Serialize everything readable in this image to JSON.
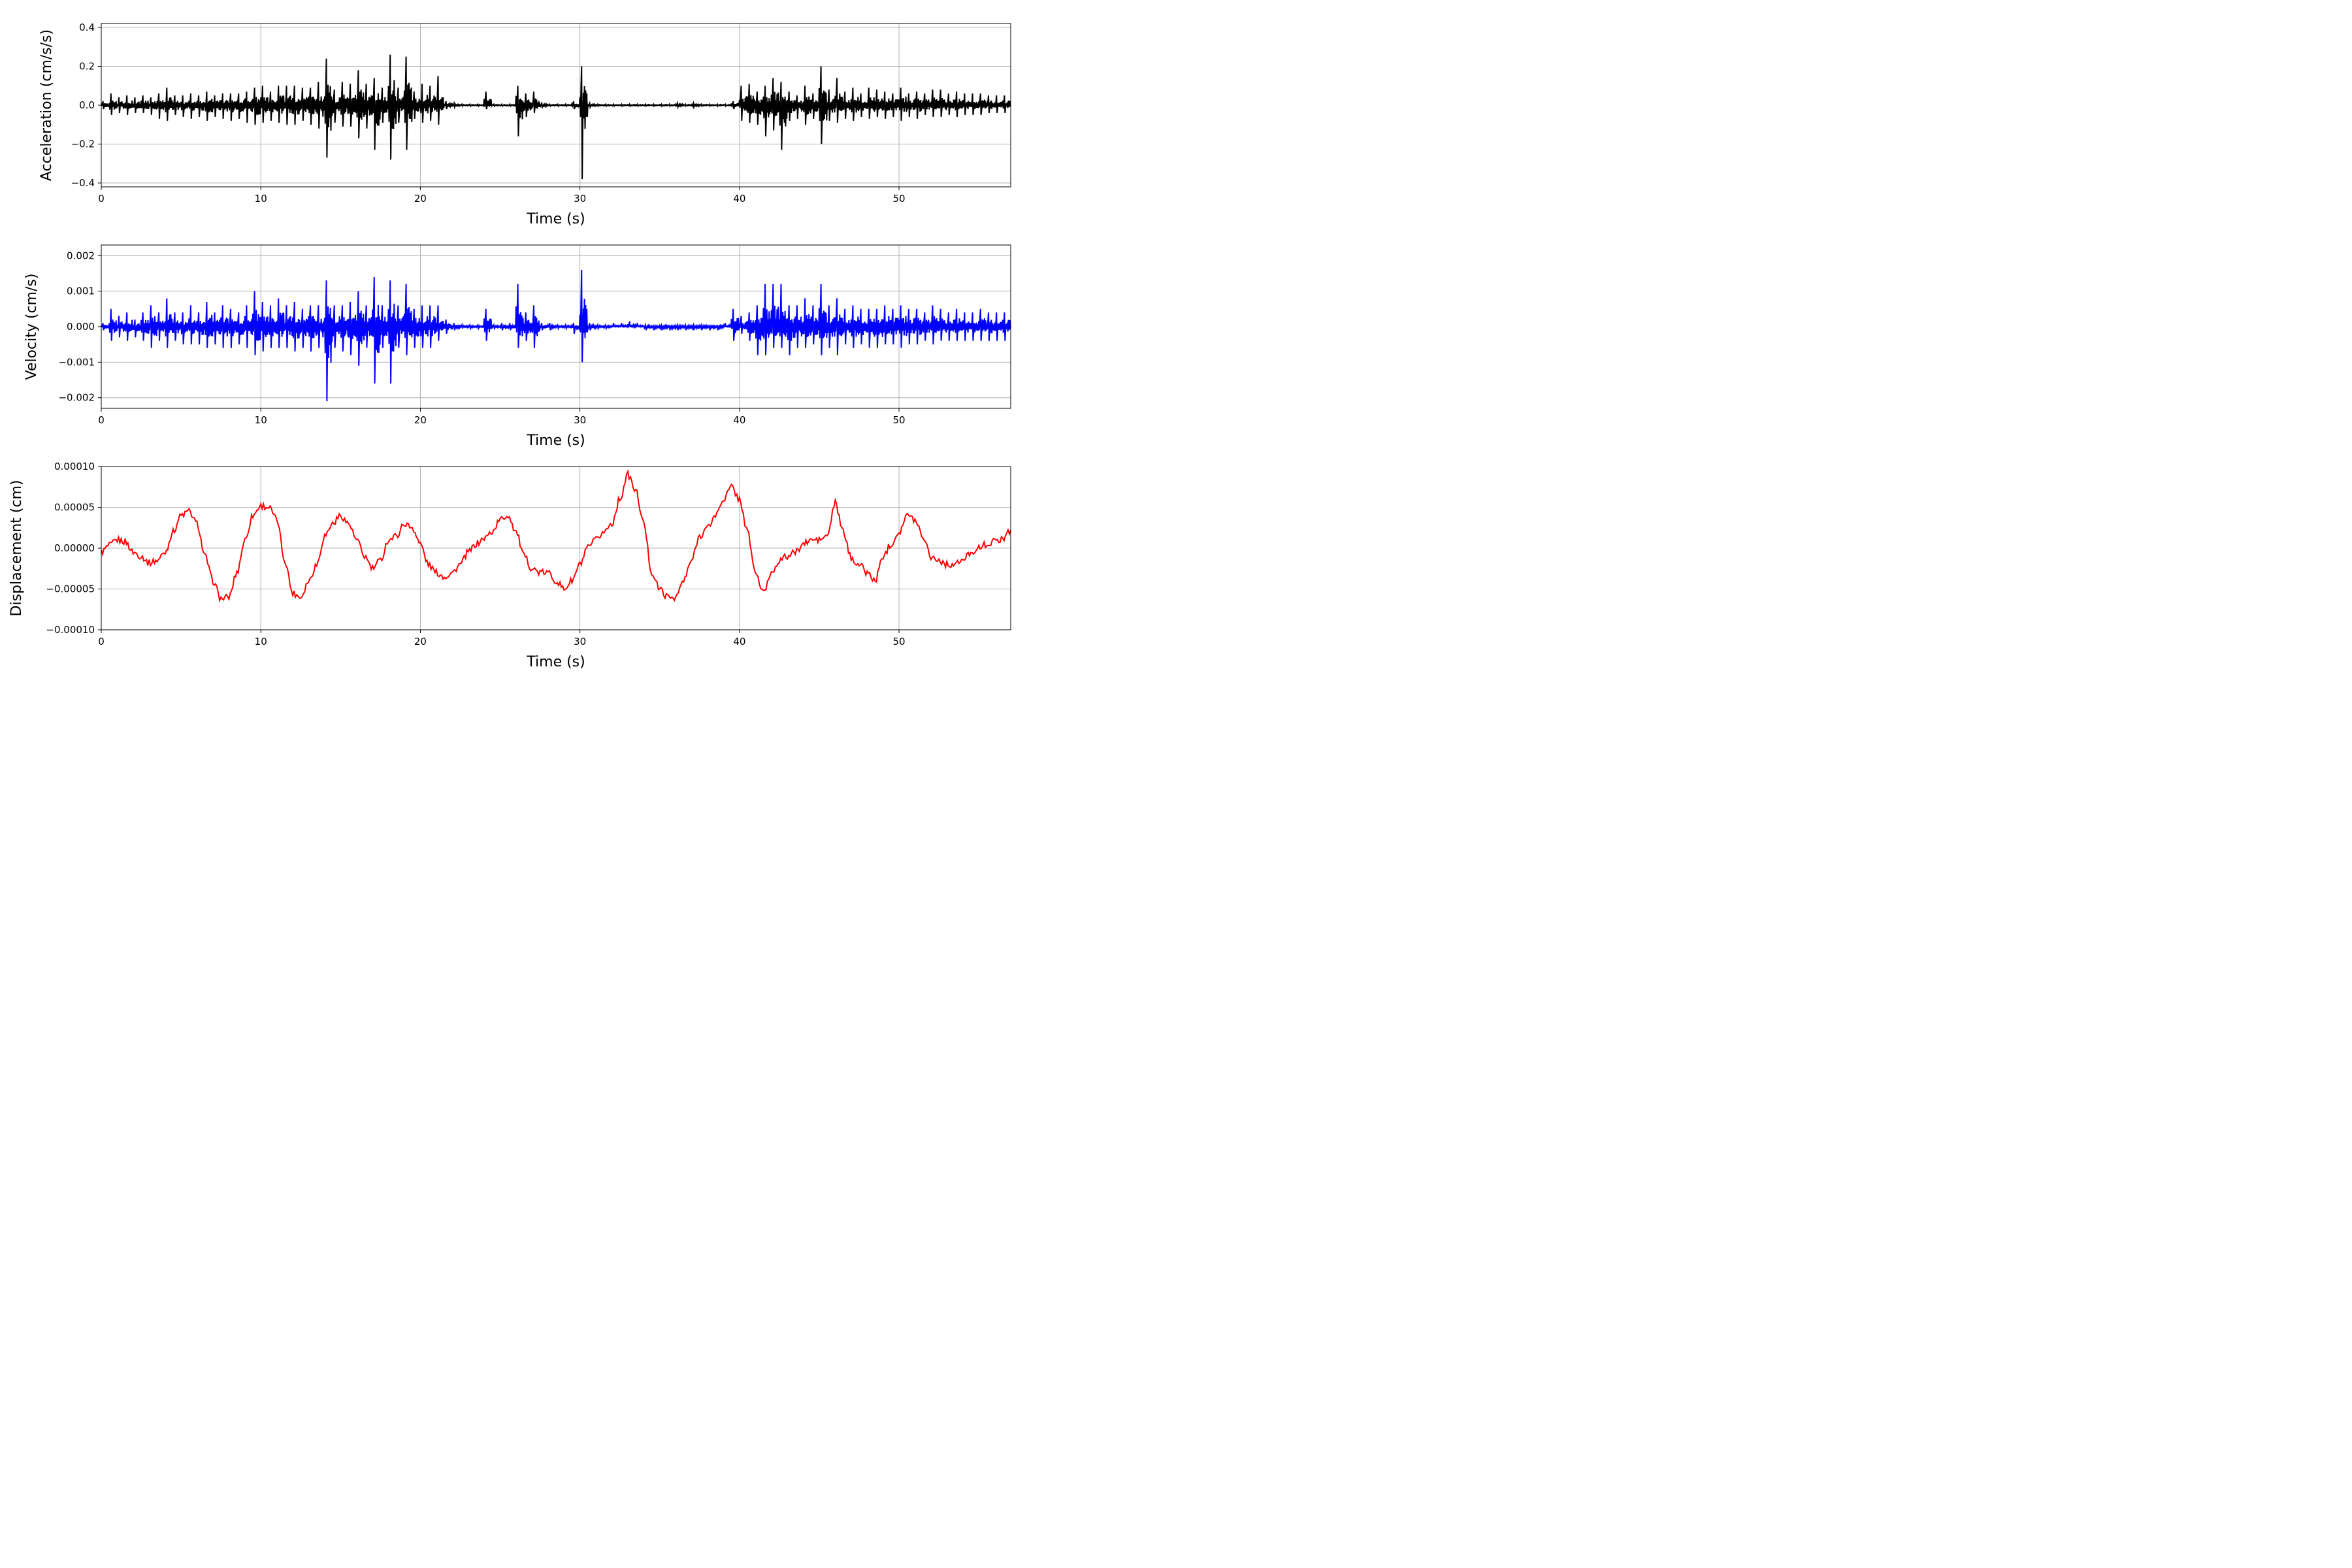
{
  "chart_data": [
    {
      "type": "line",
      "xlabel": "Time (s)",
      "ylabel": "Acceleration (cm/s/s)",
      "xlim": [
        0,
        57
      ],
      "ylim": [
        -0.42,
        0.42
      ],
      "xticks": [
        "0",
        "10",
        "20",
        "30",
        "40",
        "50"
      ],
      "yticks": [
        "−0.4",
        "−0.2",
        "0.0",
        "0.2",
        "0.4"
      ],
      "grid": true,
      "color": "#000000",
      "series_x": [
        0,
        0.5,
        1,
        1.5,
        2,
        2.5,
        3,
        3.5,
        4,
        4.5,
        5,
        5.5,
        6,
        6.5,
        7,
        7.5,
        8,
        8.5,
        9,
        9.5,
        10,
        10.5,
        11,
        11.5,
        12,
        12.5,
        13,
        13.5,
        14,
        14.5,
        15,
        15.5,
        16,
        16.5,
        17,
        17.5,
        18,
        18.5,
        19,
        19.5,
        20,
        20.5,
        21,
        21.5,
        22,
        22.5,
        23,
        23.5,
        24,
        24.5,
        25,
        25.5,
        26,
        26.5,
        27,
        27.5,
        28,
        28.5,
        29,
        29.5,
        30,
        30.5,
        31,
        31.5,
        32,
        32.5,
        33,
        33.5,
        34,
        34.5,
        35,
        35.5,
        36,
        36.5,
        37,
        37.5,
        38,
        38.5,
        39,
        39.5,
        40,
        40.5,
        41,
        41.5,
        42,
        42.5,
        43,
        43.5,
        44,
        44.5,
        45,
        45.5,
        46,
        46.5,
        47,
        47.5,
        48,
        48.5,
        49,
        49.5,
        50,
        50.5,
        51,
        51.5,
        52,
        52.5,
        53,
        53.5,
        54,
        54.5,
        55,
        55.5,
        56,
        56.5,
        57
      ],
      "series_max": [
        0.02,
        0.06,
        0.04,
        0.05,
        0.04,
        0.05,
        0.04,
        0.06,
        0.09,
        0.05,
        0.05,
        0.06,
        0.05,
        0.07,
        0.05,
        0.06,
        0.06,
        0.06,
        0.07,
        0.09,
        0.1,
        0.07,
        0.1,
        0.1,
        0.1,
        0.09,
        0.09,
        0.12,
        0.24,
        0.08,
        0.12,
        0.11,
        0.18,
        0.11,
        0.14,
        0.09,
        0.26,
        0.09,
        0.25,
        0.07,
        0.11,
        0.1,
        0.15,
        0.02,
        0.01,
        0.005,
        0.005,
        0.005,
        0.07,
        0.005,
        0.005,
        0.005,
        0.1,
        0.06,
        0.07,
        0.01,
        0.005,
        0.005,
        0.005,
        0.02,
        0.2,
        0.01,
        0.005,
        0.005,
        0.005,
        0.005,
        0.005,
        0.005,
        0.005,
        0.005,
        0.005,
        0.005,
        0.01,
        0.005,
        0.01,
        0.005,
        0.005,
        0.005,
        0.005,
        0.02,
        0.1,
        0.11,
        0.07,
        0.1,
        0.14,
        0.12,
        0.07,
        0.05,
        0.1,
        0.06,
        0.2,
        0.08,
        0.14,
        0.07,
        0.09,
        0.06,
        0.09,
        0.08,
        0.07,
        0.06,
        0.09,
        0.06,
        0.07,
        0.06,
        0.08,
        0.08,
        0.06,
        0.07,
        0.06,
        0.06,
        0.06,
        0.05,
        0.05,
        0.05,
        0.04
      ],
      "series_min": [
        -0.02,
        -0.05,
        -0.04,
        -0.05,
        -0.04,
        -0.04,
        -0.05,
        -0.07,
        -0.08,
        -0.05,
        -0.06,
        -0.07,
        -0.06,
        -0.08,
        -0.06,
        -0.07,
        -0.08,
        -0.07,
        -0.09,
        -0.1,
        -0.09,
        -0.08,
        -0.09,
        -0.1,
        -0.1,
        -0.08,
        -0.1,
        -0.12,
        -0.27,
        -0.09,
        -0.11,
        -0.11,
        -0.17,
        -0.12,
        -0.23,
        -0.09,
        -0.28,
        -0.09,
        -0.23,
        -0.07,
        -0.09,
        -0.08,
        -0.1,
        -0.02,
        -0.01,
        -0.005,
        -0.005,
        -0.005,
        -0.02,
        -0.005,
        -0.005,
        -0.005,
        -0.16,
        -0.06,
        -0.04,
        -0.01,
        -0.005,
        -0.005,
        -0.005,
        -0.02,
        -0.38,
        -0.01,
        -0.005,
        -0.005,
        -0.005,
        -0.005,
        -0.005,
        -0.005,
        -0.005,
        -0.005,
        -0.005,
        -0.005,
        -0.01,
        -0.005,
        -0.01,
        -0.005,
        -0.005,
        -0.005,
        -0.005,
        -0.02,
        -0.08,
        -0.09,
        -0.1,
        -0.16,
        -0.13,
        -0.23,
        -0.08,
        -0.07,
        -0.1,
        -0.07,
        -0.2,
        -0.08,
        -0.09,
        -0.07,
        -0.08,
        -0.06,
        -0.07,
        -0.06,
        -0.07,
        -0.06,
        -0.08,
        -0.06,
        -0.07,
        -0.05,
        -0.06,
        -0.06,
        -0.05,
        -0.06,
        -0.05,
        -0.05,
        -0.05,
        -0.04,
        -0.04,
        -0.04,
        -0.03
      ]
    },
    {
      "type": "line",
      "xlabel": "Time (s)",
      "ylabel": "Velocity (cm/s)",
      "xlim": [
        0,
        57
      ],
      "ylim": [
        -0.0023,
        0.0023
      ],
      "xticks": [
        "0",
        "10",
        "20",
        "30",
        "40",
        "50"
      ],
      "yticks": [
        "−0.002",
        "−0.001",
        "0.000",
        "0.001",
        "0.002"
      ],
      "grid": true,
      "color": "#0000ff",
      "series_x": [
        0,
        0.5,
        1,
        1.5,
        2,
        2.5,
        3,
        3.5,
        4,
        4.5,
        5,
        5.5,
        6,
        6.5,
        7,
        7.5,
        8,
        8.5,
        9,
        9.5,
        10,
        10.5,
        11,
        11.5,
        12,
        12.5,
        13,
        13.5,
        14,
        14.5,
        15,
        15.5,
        16,
        16.5,
        17,
        17.5,
        18,
        18.5,
        19,
        19.5,
        20,
        20.5,
        21,
        21.5,
        22,
        22.5,
        23,
        23.5,
        24,
        24.5,
        25,
        25.5,
        26,
        26.5,
        27,
        27.5,
        28,
        28.5,
        29,
        29.5,
        30,
        30.5,
        31,
        31.5,
        32,
        32.5,
        33,
        33.5,
        34,
        34.5,
        35,
        35.5,
        36,
        36.5,
        37,
        37.5,
        38,
        38.5,
        39,
        39.5,
        40,
        40.5,
        41,
        41.5,
        42,
        42.5,
        43,
        43.5,
        44,
        44.5,
        45,
        45.5,
        46,
        46.5,
        47,
        47.5,
        48,
        48.5,
        49,
        49.5,
        50,
        50.5,
        51,
        51.5,
        52,
        52.5,
        53,
        53.5,
        54,
        54.5,
        55,
        55.5,
        56,
        56.5,
        57
      ],
      "series_max": [
        0.0001,
        0.0005,
        0.0003,
        0.0004,
        0.0002,
        0.0004,
        0.0006,
        0.0004,
        0.0008,
        0.0004,
        0.0004,
        0.0006,
        0.0004,
        0.0007,
        0.0004,
        0.0006,
        0.0005,
        0.0004,
        0.0006,
        0.001,
        0.0007,
        0.0006,
        0.0008,
        0.0006,
        0.0007,
        0.0005,
        0.0006,
        0.0006,
        0.0013,
        0.0006,
        0.0006,
        0.0007,
        0.001,
        0.0006,
        0.0014,
        0.0006,
        0.0013,
        0.0006,
        0.0012,
        0.0005,
        0.0006,
        0.0006,
        0.0006,
        0.0002,
        0.0001,
        5e-05,
        5e-05,
        5e-05,
        0.0005,
        5e-05,
        0.0001,
        0.0001,
        0.0012,
        0.0004,
        0.0006,
        0.0001,
        0.0001,
        5e-05,
        5e-05,
        0.0001,
        0.0016,
        0.0001,
        5e-05,
        5e-05,
        0.0001,
        0.0001,
        0.00015,
        0.0001,
        5e-05,
        5e-05,
        5e-05,
        5e-05,
        5e-05,
        5e-05,
        5e-05,
        5e-05,
        5e-05,
        5e-05,
        0.0001,
        0.0005,
        0.0003,
        0.0004,
        0.0006,
        0.0012,
        0.0012,
        0.0012,
        0.0006,
        0.0006,
        0.0008,
        0.0006,
        0.0012,
        0.0006,
        0.0008,
        0.0005,
        0.0006,
        0.0005,
        0.0005,
        0.0005,
        0.0006,
        0.0005,
        0.0006,
        0.0005,
        0.0005,
        0.0004,
        0.0006,
        0.0005,
        0.0004,
        0.0005,
        0.0004,
        0.0004,
        0.0005,
        0.0004,
        0.0004,
        0.0004,
        0.0003
      ],
      "series_min": [
        -0.0001,
        -0.0004,
        -0.0003,
        -0.0004,
        -0.0003,
        -0.0004,
        -0.0006,
        -0.0004,
        -0.0006,
        -0.0004,
        -0.0005,
        -0.0005,
        -0.0005,
        -0.0006,
        -0.0005,
        -0.0006,
        -0.0006,
        -0.0005,
        -0.0006,
        -0.0008,
        -0.0007,
        -0.0006,
        -0.0006,
        -0.0006,
        -0.0007,
        -0.0006,
        -0.0007,
        -0.0006,
        -0.0021,
        -0.0006,
        -0.0007,
        -0.0008,
        -0.0011,
        -0.0006,
        -0.0016,
        -0.0006,
        -0.0016,
        -0.0006,
        -0.0008,
        -0.0006,
        -0.0006,
        -0.0006,
        -0.0004,
        -0.0002,
        -0.0001,
        -5e-05,
        -5e-05,
        -5e-05,
        -0.0004,
        -5e-05,
        -0.0001,
        -0.0001,
        -0.0006,
        -0.0004,
        -0.0006,
        -0.0001,
        -0.0001,
        -5e-05,
        -5e-05,
        -0.0002,
        -0.001,
        -0.0001,
        -5e-05,
        -5e-05,
        0,
        0,
        0,
        0,
        -0.0001,
        -0.0001,
        -0.0001,
        -0.0001,
        -0.0001,
        -0.0001,
        -0.0001,
        -0.0001,
        -0.0001,
        -0.0001,
        0,
        -0.0004,
        -0.0002,
        -0.0004,
        -0.0008,
        -0.0008,
        -0.0006,
        -0.0006,
        -0.0008,
        -0.0006,
        -0.0006,
        -0.0005,
        -0.0008,
        -0.0006,
        -0.0008,
        -0.0005,
        -0.0006,
        -0.0005,
        -0.0006,
        -0.0006,
        -0.0005,
        -0.0005,
        -0.0006,
        -0.0005,
        -0.0005,
        -0.0004,
        -0.0005,
        -0.0004,
        -0.0004,
        -0.0004,
        -0.0004,
        -0.0004,
        -0.0004,
        -0.0004,
        -0.0004,
        -0.0004,
        -0.0003
      ]
    },
    {
      "type": "line",
      "xlabel": "Time (s)",
      "ylabel": "Displacement (cm)",
      "xlim": [
        0,
        57
      ],
      "ylim": [
        -0.0001,
        0.0001
      ],
      "xticks": [
        "0",
        "10",
        "20",
        "30",
        "40",
        "50"
      ],
      "yticks": [
        "−0.00010",
        "−0.00005",
        "0.00000",
        "0.00005",
        "0.00010"
      ],
      "grid": true,
      "color": "#ff0000",
      "series_x": [
        0,
        0.5,
        1,
        1.5,
        2,
        2.5,
        3,
        3.5,
        4,
        4.5,
        5,
        5.5,
        6,
        6.5,
        7,
        7.5,
        8,
        8.5,
        9,
        9.5,
        10,
        10.5,
        11,
        11.5,
        12,
        12.5,
        13,
        13.5,
        14,
        14.5,
        15,
        15.5,
        16,
        16.5,
        17,
        17.5,
        18,
        18.5,
        19,
        19.5,
        20,
        20.5,
        21,
        21.5,
        22,
        22.5,
        23,
        23.5,
        24,
        24.5,
        25,
        25.5,
        26,
        26.5,
        27,
        27.5,
        28,
        28.5,
        29,
        29.5,
        30,
        30.5,
        31,
        31.5,
        32,
        32.5,
        33,
        33.5,
        34,
        34.5,
        35,
        35.5,
        36,
        36.5,
        37,
        37.5,
        38,
        38.5,
        39,
        39.5,
        40,
        40.5,
        41,
        41.5,
        42,
        42.5,
        43,
        43.5,
        44,
        44.5,
        45,
        45.5,
        46,
        46.5,
        47,
        47.5,
        48,
        48.5,
        49,
        49.5,
        50,
        50.5,
        51,
        51.5,
        52,
        52.5,
        53,
        53.5,
        54,
        54.5,
        55,
        55.5,
        56,
        56.5,
        57
      ],
      "series_y": [
        -5e-06,
        3e-06,
        1e-05,
        8e-06,
        -5e-06,
        -1e-05,
        -1.8e-05,
        -1.5e-05,
        -5e-06,
        2e-05,
        4e-05,
        4.5e-05,
        3e-05,
        -1e-05,
        -4e-05,
        -6.2e-05,
        -6e-05,
        -3e-05,
        1e-05,
        4e-05,
        5.2e-05,
        5e-05,
        3.5e-05,
        -1.5e-05,
        -5.5e-05,
        -6e-05,
        -4e-05,
        -2e-05,
        1.5e-05,
        3e-05,
        4e-05,
        3e-05,
        1e-05,
        -1e-05,
        -2.5e-05,
        -1.5e-05,
        1e-05,
        1.5e-05,
        3e-05,
        2.5e-05,
        5e-06,
        -2e-05,
        -3e-05,
        -3.5e-05,
        -3e-05,
        -2e-05,
        -5e-06,
        5e-06,
        1.2e-05,
        2e-05,
        3.5e-05,
        4e-05,
        2e-05,
        -1e-05,
        -2.5e-05,
        -3e-05,
        -3e-05,
        -4e-05,
        -5e-05,
        -4e-05,
        -2e-05,
        0,
        1e-05,
        2e-05,
        3e-05,
        6e-05,
        9e-05,
        7e-05,
        3e-05,
        -3e-05,
        -5e-05,
        -6e-05,
        -6e-05,
        -4e-05,
        -1.5e-05,
        1.5e-05,
        2.5e-05,
        4e-05,
        6e-05,
        7.5e-05,
        6e-05,
        2e-05,
        -3e-05,
        -5.5e-05,
        -3e-05,
        -1.5e-05,
        -1e-05,
        -5e-06,
        5e-06,
        1e-05,
        1e-05,
        1.5e-05,
        5.5e-05,
        2e-05,
        -1.2e-05,
        -2e-05,
        -3e-05,
        -4e-05,
        -1e-05,
        5e-06,
        2e-05,
        4e-05,
        3.5e-05,
        1.5e-05,
        -1e-05,
        -1.5e-05,
        -2e-05,
        -2e-05,
        -1.5e-05,
        -5e-06,
        0,
        5e-06,
        8e-06,
        1.2e-05,
        2.2e-05
      ]
    }
  ]
}
